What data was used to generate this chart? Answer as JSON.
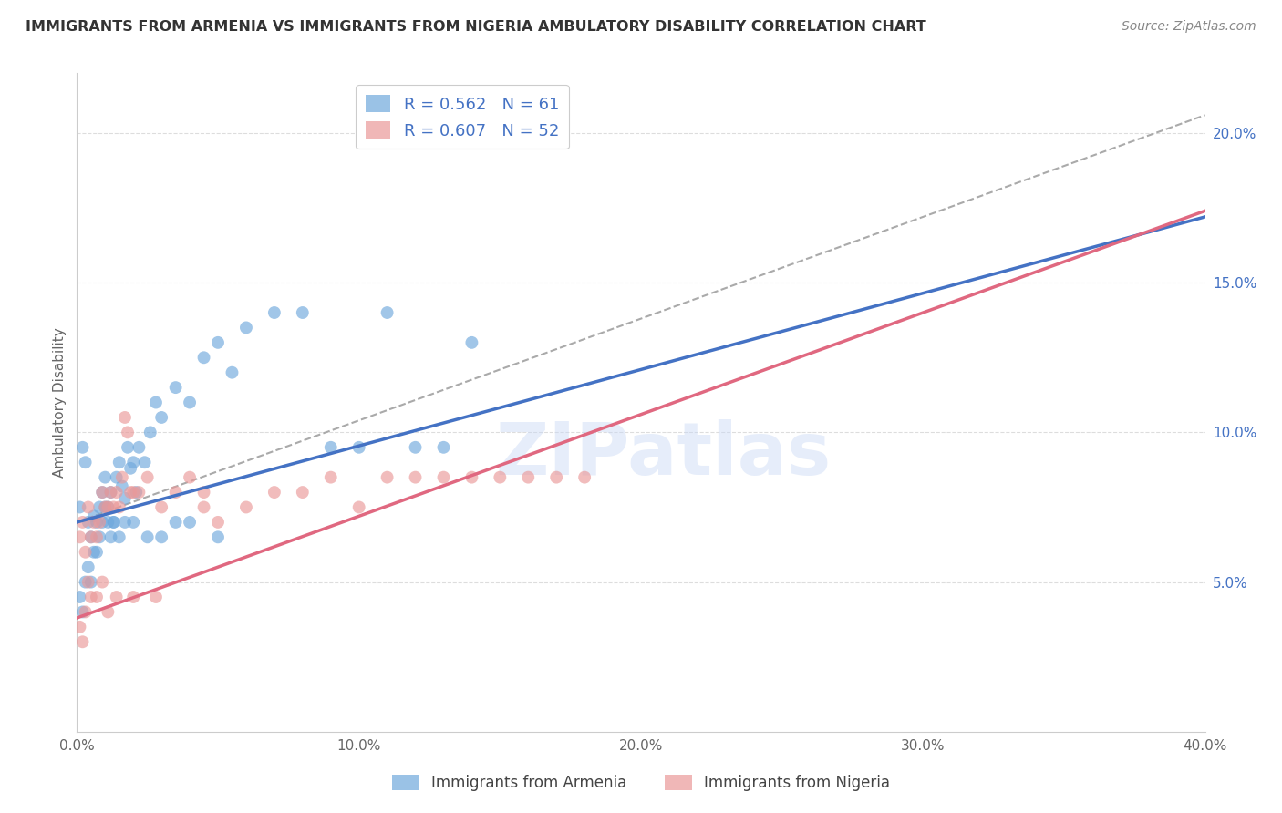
{
  "title": "IMMIGRANTS FROM ARMENIA VS IMMIGRANTS FROM NIGERIA AMBULATORY DISABILITY CORRELATION CHART",
  "source": "Source: ZipAtlas.com",
  "ylabel": "Ambulatory Disability",
  "armenia_color": "#6fa8dc",
  "nigeria_color": "#ea9999",
  "armenia_line_color": "#4472c4",
  "nigeria_line_color": "#e06880",
  "dashed_line_color": "#aaaaaa",
  "armenia_R": 0.562,
  "armenia_N": 61,
  "nigeria_R": 0.607,
  "nigeria_N": 52,
  "armenia_label": "Immigrants from Armenia",
  "nigeria_label": "Immigrants from Nigeria",
  "watermark": "ZIPatlas",
  "legend_text_color": "#4472c4",
  "legend_N_color": "#4472c4",
  "xlim": [
    0,
    40
  ],
  "ylim": [
    0,
    22
  ],
  "armenia_x": [
    0.1,
    0.2,
    0.3,
    0.4,
    0.5,
    0.6,
    0.7,
    0.8,
    0.9,
    1.0,
    1.1,
    1.2,
    1.3,
    1.4,
    1.5,
    1.6,
    1.7,
    1.8,
    1.9,
    2.0,
    2.1,
    2.2,
    2.4,
    2.6,
    2.8,
    3.0,
    3.5,
    4.0,
    4.5,
    5.0,
    5.5,
    6.0,
    7.0,
    8.0,
    9.0,
    10.0,
    11.0,
    12.0,
    13.0,
    14.0,
    0.1,
    0.2,
    0.3,
    0.4,
    0.5,
    0.6,
    0.7,
    0.8,
    0.9,
    1.0,
    1.1,
    1.2,
    1.3,
    1.5,
    1.7,
    2.0,
    2.5,
    3.0,
    3.5,
    4.0,
    5.0
  ],
  "armenia_y": [
    7.5,
    9.5,
    9.0,
    7.0,
    6.5,
    7.2,
    7.0,
    7.5,
    8.0,
    8.5,
    7.5,
    8.0,
    7.0,
    8.5,
    9.0,
    8.2,
    7.8,
    9.5,
    8.8,
    9.0,
    8.0,
    9.5,
    9.0,
    10.0,
    11.0,
    10.5,
    11.5,
    11.0,
    12.5,
    13.0,
    12.0,
    13.5,
    14.0,
    14.0,
    9.5,
    9.5,
    14.0,
    9.5,
    9.5,
    13.0,
    4.5,
    4.0,
    5.0,
    5.5,
    5.0,
    6.0,
    6.0,
    6.5,
    7.0,
    7.5,
    7.0,
    6.5,
    7.0,
    6.5,
    7.0,
    7.0,
    6.5,
    6.5,
    7.0,
    7.0,
    6.5
  ],
  "nigeria_x": [
    0.1,
    0.2,
    0.3,
    0.4,
    0.5,
    0.6,
    0.7,
    0.8,
    0.9,
    1.0,
    1.1,
    1.2,
    1.3,
    1.4,
    1.5,
    1.6,
    1.7,
    1.8,
    1.9,
    2.0,
    2.2,
    2.5,
    3.0,
    3.5,
    4.0,
    4.5,
    5.0,
    6.0,
    7.0,
    8.0,
    9.0,
    10.0,
    11.0,
    12.0,
    13.0,
    14.0,
    15.0,
    16.0,
    17.0,
    18.0,
    0.1,
    0.2,
    0.3,
    0.4,
    0.5,
    0.7,
    0.9,
    1.1,
    1.4,
    2.0,
    2.8,
    4.5
  ],
  "nigeria_y": [
    6.5,
    7.0,
    6.0,
    7.5,
    6.5,
    7.0,
    6.5,
    7.0,
    8.0,
    7.5,
    7.5,
    8.0,
    7.5,
    8.0,
    7.5,
    8.5,
    10.5,
    10.0,
    8.0,
    8.0,
    8.0,
    8.5,
    7.5,
    8.0,
    8.5,
    8.0,
    7.0,
    7.5,
    8.0,
    8.0,
    8.5,
    7.5,
    8.5,
    8.5,
    8.5,
    8.5,
    8.5,
    8.5,
    8.5,
    8.5,
    3.5,
    3.0,
    4.0,
    5.0,
    4.5,
    4.5,
    5.0,
    4.0,
    4.5,
    4.5,
    4.5,
    7.5
  ]
}
